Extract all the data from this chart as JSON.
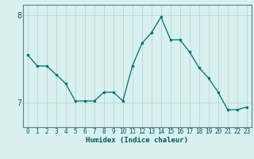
{
  "title": "",
  "xlabel": "Humidex (Indice chaleur)",
  "ylabel": "",
  "x": [
    0,
    1,
    2,
    3,
    4,
    5,
    6,
    7,
    8,
    9,
    10,
    11,
    12,
    13,
    14,
    15,
    16,
    17,
    18,
    19,
    20,
    21,
    22,
    23
  ],
  "y": [
    7.55,
    7.42,
    7.42,
    7.32,
    7.22,
    7.02,
    7.02,
    7.02,
    7.12,
    7.12,
    7.02,
    7.42,
    7.68,
    7.8,
    7.98,
    7.72,
    7.72,
    7.58,
    7.4,
    7.28,
    7.12,
    6.92,
    6.92,
    6.95
  ],
  "line_color": "#006e6e",
  "marker": "o",
  "marker_size": 2.0,
  "bg_color": "#d8f0f0",
  "grid_color": "#b8d4d4",
  "axis_color": "#608080",
  "text_color": "#005858",
  "ylim": [
    6.72,
    8.12
  ],
  "yticks": [
    7,
    8
  ],
  "xticks": [
    0,
    1,
    2,
    3,
    4,
    5,
    6,
    7,
    8,
    9,
    10,
    11,
    12,
    13,
    14,
    15,
    16,
    17,
    18,
    19,
    20,
    21,
    22,
    23
  ],
  "figsize": [
    3.2,
    2.0
  ],
  "dpi": 100
}
